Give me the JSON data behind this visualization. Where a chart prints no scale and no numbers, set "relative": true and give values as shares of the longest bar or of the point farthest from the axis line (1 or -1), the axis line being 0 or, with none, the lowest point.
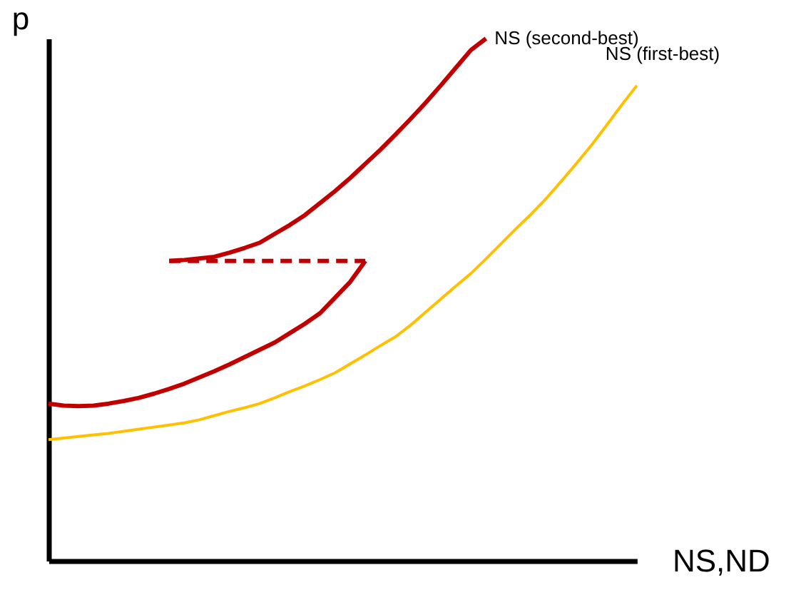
{
  "chart_data": {
    "type": "line",
    "relative": true,
    "xlabel": "NS,ND",
    "ylabel": "p",
    "grid": false,
    "tick_labels": false,
    "marker": "none",
    "categories": [
      null,
      null,
      null,
      null,
      null,
      null,
      null,
      null,
      null,
      null,
      null,
      null,
      null,
      null,
      null,
      null,
      null,
      null,
      null,
      null,
      null,
      null,
      null,
      null,
      null,
      null,
      null,
      null,
      null,
      null,
      null,
      null,
      null,
      null,
      null,
      null,
      null,
      null,
      null,
      null
    ],
    "series": [
      {
        "color": "#c00000",
        "line_style": "solid",
        "values": [
          0.301,
          0.297,
          0.296,
          0.297,
          0.301,
          0.306,
          0.312,
          0.32,
          0.329,
          0.339,
          0.351,
          0.363,
          0.376,
          0.39,
          0.404,
          0.418,
          0.436,
          0.454,
          0.474,
          0.504,
          0.534,
          0.574,
          null,
          null,
          null,
          null,
          null,
          null,
          null,
          null,
          null,
          null,
          null,
          null,
          null,
          null,
          null,
          null,
          null,
          null
        ]
      },
      {
        "color": "#c00000",
        "line_style": "dashed",
        "values": [
          null,
          null,
          null,
          null,
          null,
          null,
          null,
          null,
          0.574,
          0.574,
          0.574,
          0.574,
          0.574,
          0.574,
          0.574,
          0.574,
          0.574,
          0.574,
          0.574,
          0.574,
          0.574,
          0.574,
          null,
          null,
          null,
          null,
          null,
          null,
          null,
          null,
          null,
          null,
          null,
          null,
          null,
          null,
          null,
          null,
          null,
          null
        ]
      },
      {
        "name": "NS (second-best)",
        "color": "#c00000",
        "line_style": "solid",
        "values": [
          null,
          null,
          null,
          null,
          null,
          null,
          null,
          null,
          0.574,
          0.576,
          0.579,
          0.582,
          0.59,
          0.599,
          0.609,
          0.626,
          0.643,
          0.662,
          0.685,
          0.708,
          0.733,
          0.76,
          0.787,
          0.816,
          0.846,
          0.877,
          0.91,
          0.944,
          0.978,
          1.0,
          null,
          null,
          null,
          null,
          null,
          null,
          null,
          null,
          null,
          null
        ]
      },
      {
        "name": "NS (first-best)",
        "color": "#ffc000",
        "line_style": "solid",
        "values": [
          0.232,
          0.235,
          0.238,
          0.241,
          0.244,
          0.248,
          0.252,
          0.256,
          0.26,
          0.264,
          0.27,
          0.278,
          0.286,
          0.293,
          0.301,
          0.312,
          0.324,
          0.335,
          0.347,
          0.36,
          0.377,
          0.394,
          0.412,
          0.429,
          0.451,
          0.476,
          0.501,
          0.526,
          0.55,
          0.578,
          0.607,
          0.636,
          0.664,
          0.694,
          0.727,
          0.761,
          0.796,
          0.834,
          0.873,
          0.91
        ]
      }
    ]
  }
}
